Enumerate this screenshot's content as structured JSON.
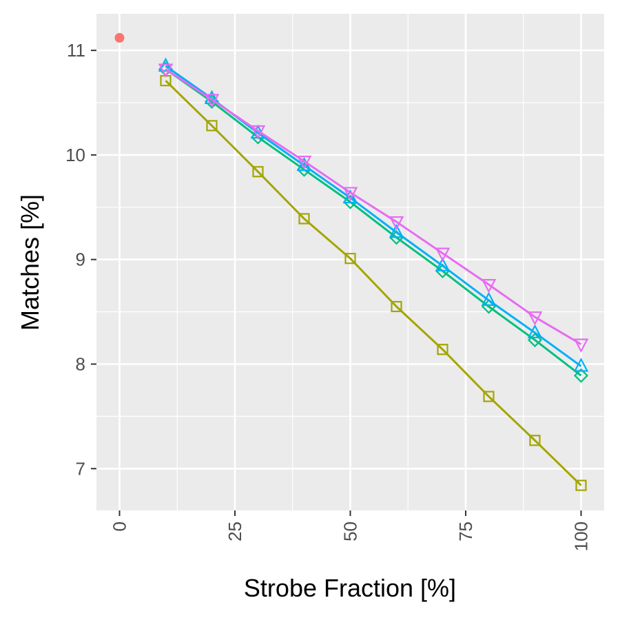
{
  "chart_data": {
    "type": "line",
    "title": "",
    "xlabel": "Strobe Fraction [%]",
    "ylabel": "Matches [%]",
    "xlim": [
      -5,
      105
    ],
    "ylim": [
      6.6,
      11.35
    ],
    "xticks": [
      0,
      25,
      50,
      75,
      100
    ],
    "xtick_labels": [
      "0",
      "25",
      "50",
      "75",
      "100"
    ],
    "yticks": [
      7,
      8,
      9,
      10,
      11
    ],
    "ytick_labels": [
      "7",
      "8",
      "9",
      "10",
      "11"
    ],
    "grid": true,
    "legend": "none",
    "baseline": {
      "x": 0,
      "y": 11.12,
      "color": "#F8766D",
      "marker": "circle"
    },
    "series": [
      {
        "color": "#A3A500",
        "marker": "square",
        "x": [
          10,
          20,
          30,
          40,
          50,
          60,
          70,
          80,
          90,
          100
        ],
        "y": [
          10.71,
          10.28,
          9.84,
          9.39,
          9.01,
          8.55,
          8.14,
          7.69,
          7.27,
          6.84
        ]
      },
      {
        "color": "#00BF7D",
        "marker": "diamond",
        "x": [
          10,
          20,
          30,
          40,
          50,
          60,
          70,
          80,
          90,
          100
        ],
        "y": [
          10.82,
          10.51,
          10.17,
          9.86,
          9.55,
          9.21,
          8.89,
          8.55,
          8.23,
          7.89
        ]
      },
      {
        "color": "#00B0F6",
        "marker": "triangle-up",
        "x": [
          10,
          20,
          30,
          40,
          50,
          60,
          70,
          80,
          90,
          100
        ],
        "y": [
          10.85,
          10.54,
          10.21,
          9.9,
          9.59,
          9.26,
          8.94,
          8.61,
          8.3,
          7.98
        ]
      },
      {
        "color": "#E76BF3",
        "marker": "triangle-down",
        "x": [
          10,
          20,
          30,
          40,
          50,
          60,
          70,
          80,
          90,
          100
        ],
        "y": [
          10.82,
          10.53,
          10.23,
          9.94,
          9.64,
          9.36,
          9.06,
          8.76,
          8.45,
          8.19
        ]
      }
    ]
  }
}
